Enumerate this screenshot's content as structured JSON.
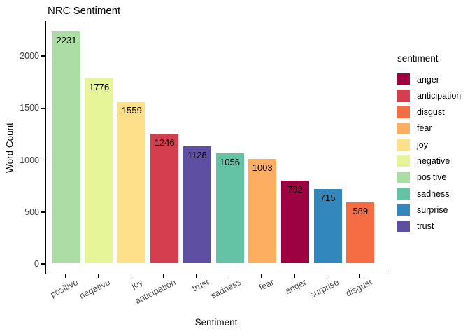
{
  "chart_data": {
    "type": "bar",
    "title": "NRC Sentiment",
    "xlabel": "Sentiment",
    "ylabel": "Word Count",
    "categories": [
      "positive",
      "negative",
      "joy",
      "anticipation",
      "trust",
      "sadness",
      "fear",
      "anger",
      "surprise",
      "disgust"
    ],
    "values": [
      2231,
      1776,
      1559,
      1246,
      1128,
      1056,
      1003,
      792,
      715,
      589
    ],
    "bar_value_labels": [
      "2231",
      "1776",
      "1559",
      "1246",
      "1128",
      "1056",
      "1003",
      "792",
      "715",
      "589"
    ],
    "y_ticks": [
      0,
      500,
      1000,
      1500,
      2000
    ],
    "ylim": [
      0,
      2337
    ],
    "grid": false,
    "background": "#ffffff",
    "legend": {
      "title": "sentiment",
      "position": "right",
      "entries": [
        {
          "label": "anger",
          "color": "#9E0142"
        },
        {
          "label": "anticipation",
          "color": "#D53E4F"
        },
        {
          "label": "disgust",
          "color": "#F46D43"
        },
        {
          "label": "fear",
          "color": "#FDAE61"
        },
        {
          "label": "joy",
          "color": "#FEE08B"
        },
        {
          "label": "negative",
          "color": "#E6F598"
        },
        {
          "label": "positive",
          "color": "#ABDDA4"
        },
        {
          "label": "sadness",
          "color": "#66C2A5"
        },
        {
          "label": "surprise",
          "color": "#3288BD"
        },
        {
          "label": "trust",
          "color": "#5E4FA2"
        }
      ]
    }
  }
}
